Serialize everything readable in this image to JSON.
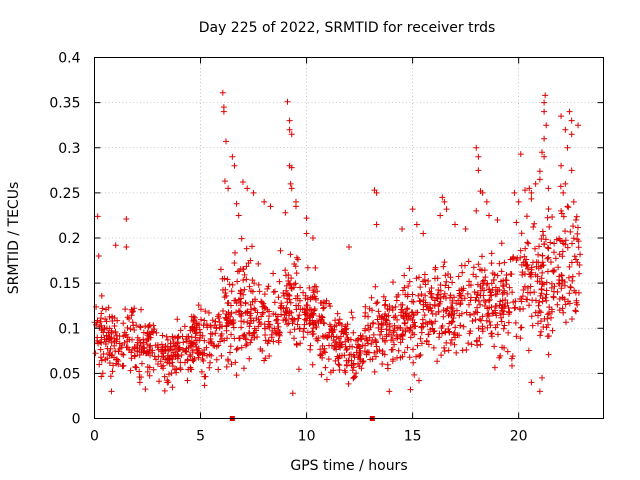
{
  "chart_data": {
    "type": "scatter",
    "title": "Day 225 of 2022, SRMTID for receiver trds",
    "xlabel": "GPS time / hours",
    "ylabel": "SRMTID / TECUs",
    "xlim": [
      0,
      24
    ],
    "ylim": [
      0,
      0.4
    ],
    "x_ticks": [
      "0",
      "5",
      "10",
      "15",
      "20"
    ],
    "y_ticks": [
      "0",
      "0.05",
      "0.1",
      "0.15",
      "0.2",
      "0.25",
      "0.3",
      "0.35",
      "0.4"
    ],
    "grid": true,
    "legend": "none",
    "marker": "plus",
    "color": "#e00000",
    "gap_markers_x": [
      6.5,
      13.1
    ],
    "profile": [
      [
        0,
        0.09,
        0.025
      ],
      [
        0.5,
        0.095,
        0.028
      ],
      [
        1,
        0.085,
        0.025
      ],
      [
        1.5,
        0.09,
        0.025
      ],
      [
        2,
        0.075,
        0.022
      ],
      [
        2.5,
        0.075,
        0.022
      ],
      [
        3,
        0.07,
        0.02
      ],
      [
        3.5,
        0.07,
        0.02
      ],
      [
        4,
        0.075,
        0.02
      ],
      [
        4.5,
        0.08,
        0.022
      ],
      [
        5,
        0.085,
        0.025
      ],
      [
        5.5,
        0.09,
        0.028
      ],
      [
        6,
        0.105,
        0.035
      ],
      [
        6.5,
        0.12,
        0.04
      ],
      [
        7,
        0.13,
        0.04
      ],
      [
        7.5,
        0.12,
        0.035
      ],
      [
        8,
        0.11,
        0.03
      ],
      [
        8.5,
        0.11,
        0.03
      ],
      [
        9,
        0.125,
        0.035
      ],
      [
        9.5,
        0.13,
        0.035
      ],
      [
        10,
        0.12,
        0.035
      ],
      [
        10.5,
        0.11,
        0.03
      ],
      [
        11,
        0.095,
        0.025
      ],
      [
        11.5,
        0.085,
        0.022
      ],
      [
        12,
        0.075,
        0.02
      ],
      [
        12.5,
        0.08,
        0.022
      ],
      [
        13,
        0.09,
        0.025
      ],
      [
        13.5,
        0.1,
        0.028
      ],
      [
        14,
        0.1,
        0.028
      ],
      [
        14.5,
        0.11,
        0.03
      ],
      [
        15,
        0.11,
        0.03
      ],
      [
        15.5,
        0.12,
        0.032
      ],
      [
        16,
        0.12,
        0.032
      ],
      [
        16.5,
        0.125,
        0.033
      ],
      [
        17,
        0.12,
        0.032
      ],
      [
        17.5,
        0.125,
        0.035
      ],
      [
        18,
        0.13,
        0.035
      ],
      [
        18.5,
        0.13,
        0.035
      ],
      [
        19,
        0.125,
        0.035
      ],
      [
        19.5,
        0.135,
        0.04
      ],
      [
        20,
        0.15,
        0.045
      ],
      [
        20.5,
        0.16,
        0.045
      ],
      [
        21,
        0.15,
        0.045
      ],
      [
        21.5,
        0.15,
        0.045
      ],
      [
        22,
        0.16,
        0.045
      ],
      [
        22.5,
        0.17,
        0.05
      ],
      [
        22.9,
        0.16,
        0.045
      ]
    ],
    "outliers": [
      [
        0.15,
        0.224
      ],
      [
        0.2,
        0.18
      ],
      [
        1.0,
        0.192
      ],
      [
        1.5,
        0.19
      ],
      [
        1.5,
        0.221
      ],
      [
        0.8,
        0.03
      ],
      [
        6.05,
        0.361
      ],
      [
        6.1,
        0.345
      ],
      [
        6.1,
        0.34
      ],
      [
        6.2,
        0.307
      ],
      [
        6.15,
        0.263
      ],
      [
        6.3,
        0.255
      ],
      [
        6.5,
        0.29
      ],
      [
        6.6,
        0.28
      ],
      [
        6.7,
        0.238
      ],
      [
        6.8,
        0.225
      ],
      [
        7.0,
        0.262
      ],
      [
        7.2,
        0.255
      ],
      [
        7.5,
        0.25
      ],
      [
        8.0,
        0.24
      ],
      [
        6.7,
        0.048
      ],
      [
        8.3,
        0.235
      ],
      [
        9.1,
        0.351
      ],
      [
        9.2,
        0.33
      ],
      [
        9.2,
        0.32
      ],
      [
        9.3,
        0.315
      ],
      [
        9.2,
        0.28
      ],
      [
        9.3,
        0.278
      ],
      [
        9.25,
        0.26
      ],
      [
        9.3,
        0.255
      ],
      [
        9.5,
        0.24
      ],
      [
        9.5,
        0.235
      ],
      [
        9.0,
        0.228
      ],
      [
        9.35,
        0.028
      ],
      [
        10.0,
        0.222
      ],
      [
        10.0,
        0.205
      ],
      [
        10.3,
        0.2
      ],
      [
        12.0,
        0.19
      ],
      [
        13.2,
        0.253
      ],
      [
        13.3,
        0.25
      ],
      [
        13.3,
        0.215
      ],
      [
        14.5,
        0.21
      ],
      [
        15.0,
        0.232
      ],
      [
        15.2,
        0.215
      ],
      [
        15.5,
        0.205
      ],
      [
        13.9,
        0.03
      ],
      [
        14.9,
        0.032
      ],
      [
        15.3,
        0.042
      ],
      [
        16.4,
        0.245
      ],
      [
        16.5,
        0.24
      ],
      [
        16.6,
        0.232
      ],
      [
        16.3,
        0.225
      ],
      [
        17.0,
        0.215
      ],
      [
        17.5,
        0.21
      ],
      [
        18.0,
        0.3
      ],
      [
        18.1,
        0.29
      ],
      [
        18.1,
        0.275
      ],
      [
        18.2,
        0.252
      ],
      [
        18.3,
        0.25
      ],
      [
        18.0,
        0.23
      ],
      [
        18.5,
        0.24
      ],
      [
        18.6,
        0.225
      ],
      [
        19.0,
        0.22
      ],
      [
        20.1,
        0.293
      ],
      [
        20.3,
        0.253
      ],
      [
        19.8,
        0.25
      ],
      [
        20.0,
        0.24
      ],
      [
        20.5,
        0.255
      ],
      [
        20.6,
        0.25
      ],
      [
        20.8,
        0.26
      ],
      [
        21.0,
        0.274
      ],
      [
        21.0,
        0.265
      ],
      [
        21.1,
        0.295
      ],
      [
        21.2,
        0.34
      ],
      [
        21.2,
        0.35
      ],
      [
        21.25,
        0.358
      ],
      [
        21.3,
        0.325
      ],
      [
        21.2,
        0.31
      ],
      [
        21.2,
        0.29
      ],
      [
        21.4,
        0.255
      ],
      [
        20.6,
        0.04
      ],
      [
        21.0,
        0.03
      ],
      [
        21.1,
        0.045
      ],
      [
        22.0,
        0.335
      ],
      [
        22.2,
        0.32
      ],
      [
        22.4,
        0.34
      ],
      [
        22.5,
        0.33
      ],
      [
        22.5,
        0.315
      ],
      [
        22.3,
        0.3
      ],
      [
        22.5,
        0.275
      ],
      [
        22.2,
        0.26
      ],
      [
        22.0,
        0.28
      ],
      [
        22.1,
        0.25
      ],
      [
        22.8,
        0.325
      ],
      [
        22.6,
        0.24
      ],
      [
        22.7,
        0.22
      ],
      [
        22.3,
        0.235
      ],
      [
        22.0,
        0.23
      ]
    ]
  }
}
